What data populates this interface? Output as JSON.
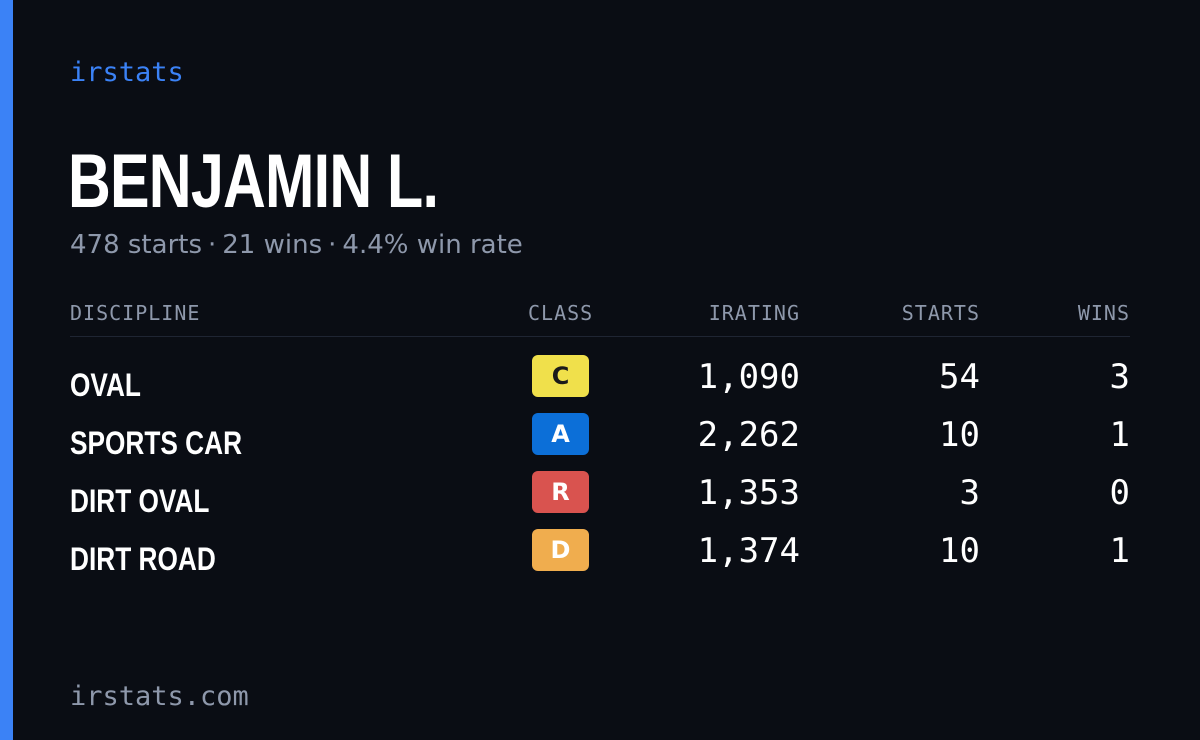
{
  "brand": "irstats",
  "driver": {
    "name": "BENJAMIN L.",
    "starts": "478 starts",
    "wins": "21 wins",
    "win_rate": "4.4% win rate",
    "separator": "·"
  },
  "table": {
    "headers": {
      "discipline": "DISCIPLINE",
      "class": "CLASS",
      "irating": "IRATING",
      "starts": "STARTS",
      "wins": "WINS"
    },
    "rows": [
      {
        "discipline": "OVAL",
        "class": "C",
        "class_color": "#f0e04b",
        "class_text_color": "#1a1a1a",
        "irating": "1,090",
        "starts": "54",
        "wins": "3"
      },
      {
        "discipline": "SPORTS CAR",
        "class": "A",
        "class_color": "#0c6fd8",
        "class_text_color": "#ffffff",
        "irating": "2,262",
        "starts": "10",
        "wins": "1"
      },
      {
        "discipline": "DIRT OVAL",
        "class": "R",
        "class_color": "#d9534f",
        "class_text_color": "#ffffff",
        "irating": "1,353",
        "starts": "3",
        "wins": "0"
      },
      {
        "discipline": "DIRT ROAD",
        "class": "D",
        "class_color": "#f0ad4e",
        "class_text_color": "#ffffff",
        "irating": "1,374",
        "starts": "10",
        "wins": "1"
      }
    ]
  },
  "footer": {
    "url": "irstats.com"
  },
  "colors": {
    "accent": "#3b82f6",
    "background": "#0a0d14",
    "muted_text": "#8e98ab"
  }
}
